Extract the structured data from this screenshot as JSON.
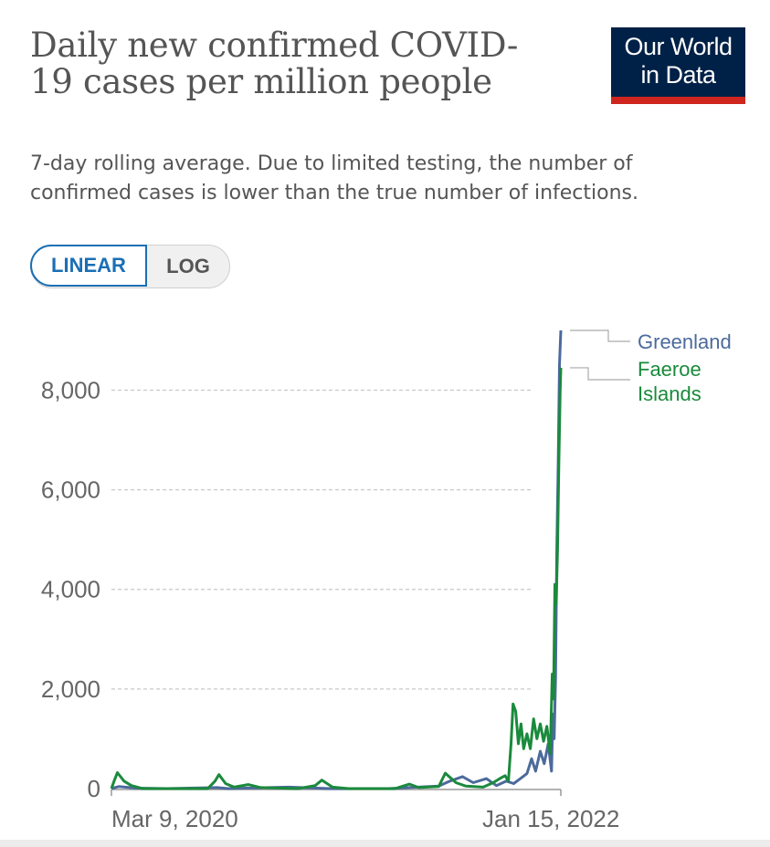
{
  "header": {
    "title": "Daily new confirmed COVID-19 cases per million people",
    "subtitle": "7-day rolling average. Due to limited testing, the number of confirmed cases is lower than the true number of infections.",
    "logo_line1": "Our World",
    "logo_line2": "in Data"
  },
  "controls": {
    "linear_label": "LINEAR",
    "log_label": "LOG",
    "active": "LINEAR"
  },
  "colors": {
    "greenland": "#4c6a9c",
    "faeroe": "#1a8a3c",
    "grid": "#c8c8c8",
    "axis": "#999999"
  },
  "chart_data": {
    "type": "line",
    "title": "Daily new confirmed COVID-19 cases per million people",
    "xlabel": "",
    "ylabel": "",
    "ylim": [
      0,
      9200
    ],
    "xlim": [
      "2020-03-09",
      "2022-01-15"
    ],
    "yticks": [
      0,
      2000,
      4000,
      6000,
      8000
    ],
    "ytick_labels": [
      "0",
      "2,000",
      "4,000",
      "6,000",
      "8,000"
    ],
    "xticks": [
      "2020-03-09",
      "2022-01-15"
    ],
    "xtick_labels": [
      "Mar 9, 2020",
      "Jan 15, 2022"
    ],
    "grid": true,
    "legend_position": "right",
    "series": [
      {
        "name": "Greenland",
        "color": "#4c6a9c",
        "points": [
          [
            "2020-03-09",
            0
          ],
          [
            "2020-03-20",
            40
          ],
          [
            "2020-04-15",
            10
          ],
          [
            "2020-06-01",
            0
          ],
          [
            "2020-08-15",
            20
          ],
          [
            "2020-09-01",
            0
          ],
          [
            "2020-12-01",
            30
          ],
          [
            "2021-02-01",
            0
          ],
          [
            "2021-05-01",
            0
          ],
          [
            "2021-07-15",
            50
          ],
          [
            "2021-08-01",
            150
          ],
          [
            "2021-08-20",
            240
          ],
          [
            "2021-09-05",
            120
          ],
          [
            "2021-09-25",
            200
          ],
          [
            "2021-10-10",
            60
          ],
          [
            "2021-10-25",
            150
          ],
          [
            "2021-11-05",
            100
          ],
          [
            "2021-11-15",
            200
          ],
          [
            "2021-11-25",
            300
          ],
          [
            "2021-12-02",
            600
          ],
          [
            "2021-12-08",
            350
          ],
          [
            "2021-12-15",
            750
          ],
          [
            "2021-12-21",
            500
          ],
          [
            "2021-12-27",
            900
          ],
          [
            "2022-01-01",
            350
          ],
          [
            "2022-01-03",
            1500
          ],
          [
            "2022-01-05",
            1000
          ],
          [
            "2022-01-07",
            2200
          ],
          [
            "2022-01-09",
            4800
          ],
          [
            "2022-01-11",
            6500
          ],
          [
            "2022-01-13",
            8500
          ],
          [
            "2022-01-15",
            9200
          ]
        ]
      },
      {
        "name": "Faeroe Islands",
        "color": "#1a8a3c",
        "points": [
          [
            "2020-03-09",
            0
          ],
          [
            "2020-03-13",
            150
          ],
          [
            "2020-03-18",
            320
          ],
          [
            "2020-03-28",
            150
          ],
          [
            "2020-04-08",
            60
          ],
          [
            "2020-04-25",
            0
          ],
          [
            "2020-08-01",
            0
          ],
          [
            "2020-08-12",
            150
          ],
          [
            "2020-08-18",
            280
          ],
          [
            "2020-08-28",
            100
          ],
          [
            "2020-09-10",
            30
          ],
          [
            "2020-10-01",
            80
          ],
          [
            "2020-10-20",
            20
          ],
          [
            "2020-12-15",
            0
          ],
          [
            "2021-01-10",
            60
          ],
          [
            "2021-01-20",
            170
          ],
          [
            "2021-02-05",
            30
          ],
          [
            "2021-03-01",
            0
          ],
          [
            "2021-05-10",
            0
          ],
          [
            "2021-06-01",
            90
          ],
          [
            "2021-06-15",
            20
          ],
          [
            "2021-07-15",
            40
          ],
          [
            "2021-07-25",
            310
          ],
          [
            "2021-08-10",
            120
          ],
          [
            "2021-08-25",
            50
          ],
          [
            "2021-09-20",
            30
          ],
          [
            "2021-10-05",
            120
          ],
          [
            "2021-10-15",
            200
          ],
          [
            "2021-10-23",
            260
          ],
          [
            "2021-10-28",
            150
          ],
          [
            "2021-11-01",
            900
          ],
          [
            "2021-11-04",
            1700
          ],
          [
            "2021-11-08",
            1550
          ],
          [
            "2021-11-12",
            900
          ],
          [
            "2021-11-16",
            1300
          ],
          [
            "2021-11-20",
            800
          ],
          [
            "2021-11-25",
            1100
          ],
          [
            "2021-11-30",
            800
          ],
          [
            "2021-12-05",
            1400
          ],
          [
            "2021-12-10",
            1000
          ],
          [
            "2021-12-15",
            1300
          ],
          [
            "2021-12-20",
            950
          ],
          [
            "2021-12-25",
            1250
          ],
          [
            "2021-12-30",
            700
          ],
          [
            "2022-01-02",
            2300
          ],
          [
            "2022-01-04",
            1800
          ],
          [
            "2022-01-06",
            4100
          ],
          [
            "2022-01-08",
            3700
          ],
          [
            "2022-01-10",
            4800
          ],
          [
            "2022-01-12",
            6500
          ],
          [
            "2022-01-14",
            8000
          ],
          [
            "2022-01-15",
            8450
          ]
        ]
      }
    ]
  }
}
